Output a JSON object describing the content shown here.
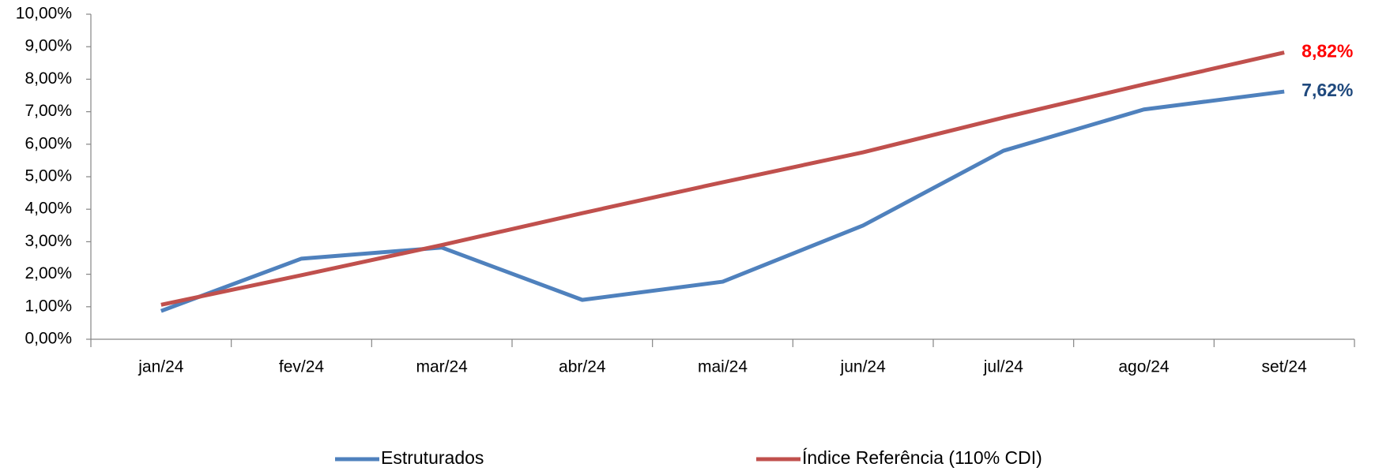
{
  "chart_data": {
    "type": "line",
    "categories": [
      "jan/24",
      "fev/24",
      "mar/24",
      "abr/24",
      "mai/24",
      "jun/24",
      "jul/24",
      "ago/24",
      "set/24"
    ],
    "series": [
      {
        "name": "Estruturados",
        "color": "#4f81bd",
        "label_color": "#1f497d",
        "values": [
          0.87,
          2.48,
          2.82,
          1.21,
          1.77,
          3.5,
          5.8,
          7.07,
          7.62
        ],
        "value_labels": [
          null,
          null,
          null,
          null,
          null,
          null,
          null,
          null,
          "7,62%"
        ]
      },
      {
        "name": "Índice Referência (110% CDI)",
        "color": "#c0504d",
        "label_color": "#ff0000",
        "values": [
          1.06,
          1.97,
          2.9,
          3.88,
          4.83,
          5.75,
          6.82,
          7.84,
          8.82
        ],
        "value_labels": [
          null,
          null,
          null,
          null,
          null,
          null,
          null,
          null,
          "8,82%"
        ]
      }
    ],
    "ylim": [
      0,
      10
    ],
    "yticks": [
      {
        "value": 0,
        "label": "0,00%"
      },
      {
        "value": 1,
        "label": "1,00%"
      },
      {
        "value": 2,
        "label": "2,00%"
      },
      {
        "value": 3,
        "label": "3,00%"
      },
      {
        "value": 4,
        "label": "4,00%"
      },
      {
        "value": 5,
        "label": "5,00%"
      },
      {
        "value": 6,
        "label": "6,00%"
      },
      {
        "value": 7,
        "label": "7,00%"
      },
      {
        "value": 8,
        "label": "8,00%"
      },
      {
        "value": 9,
        "label": "9,00%"
      },
      {
        "value": 10,
        "label": "10,00%"
      }
    ],
    "grid": false,
    "legend": "bottom"
  }
}
